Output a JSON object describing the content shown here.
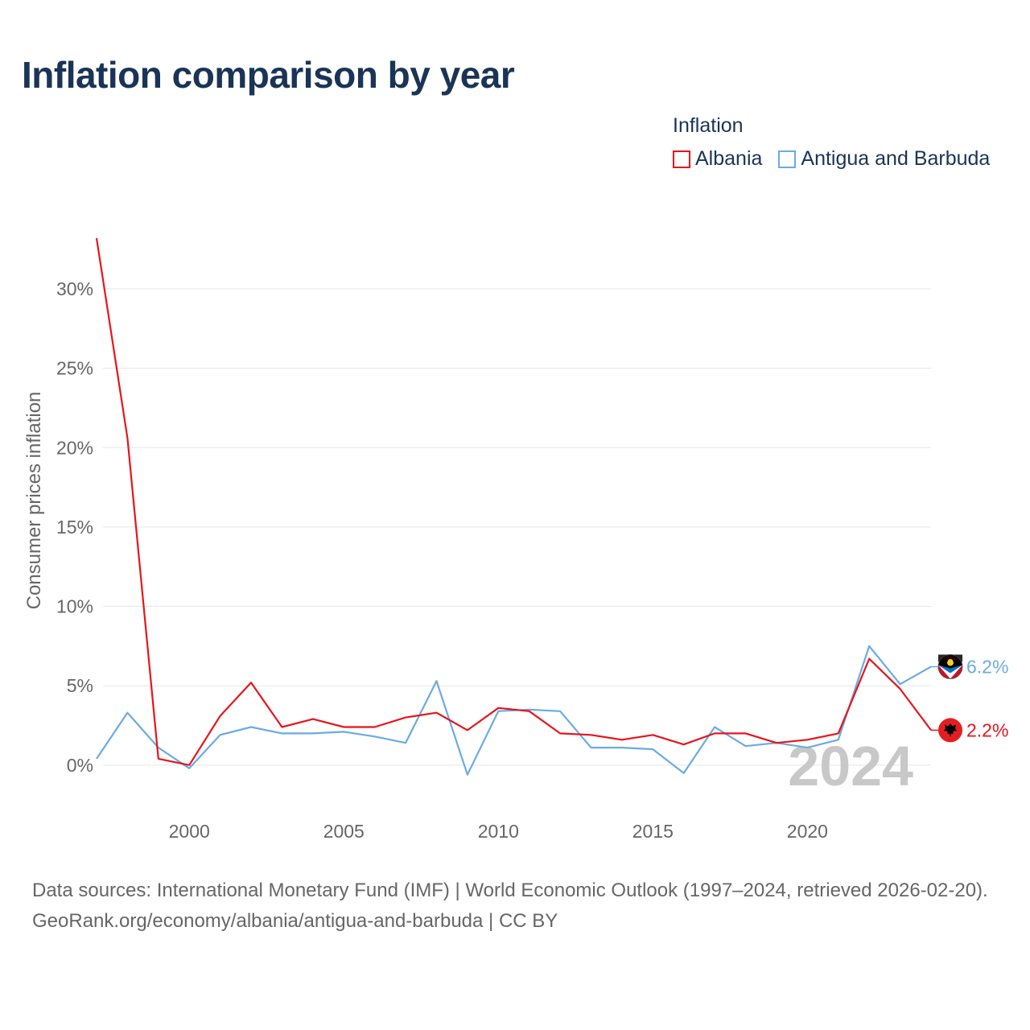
{
  "title": "Inflation comparison by year",
  "legend": {
    "title": "Inflation",
    "items": [
      {
        "label": "Albania",
        "color": "#e8141c"
      },
      {
        "label": "Antigua and Barbuda",
        "color": "#6aabe4"
      }
    ]
  },
  "footer": {
    "sources": "Data sources: International Monetary Fund (IMF) | World Economic Outlook (1997–2024, retrieved 2026-02-20).",
    "credit": "GeoRank.org/economy/albania/antigua-and-barbuda | CC BY"
  },
  "chart_data": {
    "type": "line",
    "title": "Inflation comparison by year",
    "xlabel": "",
    "ylabel": "Consumer prices inflation",
    "x": [
      1997,
      1998,
      1999,
      2000,
      2001,
      2002,
      2003,
      2004,
      2005,
      2006,
      2007,
      2008,
      2009,
      2010,
      2011,
      2012,
      2013,
      2014,
      2015,
      2016,
      2017,
      2018,
      2019,
      2020,
      2021,
      2022,
      2023,
      2024
    ],
    "xlim": [
      1997,
      2024
    ],
    "ylim": [
      -3,
      33.5
    ],
    "x_ticks": [
      2000,
      2005,
      2010,
      2015,
      2020
    ],
    "x_tick_labels": [
      "2000",
      "2005",
      "2010",
      "2015",
      "2020"
    ],
    "y_ticks": [
      0,
      5,
      10,
      15,
      20,
      25,
      30
    ],
    "y_tick_labels": [
      "0%",
      "5%",
      "10%",
      "15%",
      "20%",
      "25%",
      "30%"
    ],
    "grid": true,
    "current_year": "2024",
    "series": [
      {
        "name": "Albania",
        "color": "#e8141c",
        "values": [
          33.2,
          20.6,
          0.4,
          0.0,
          3.1,
          5.2,
          2.4,
          2.9,
          2.4,
          2.4,
          3.0,
          3.3,
          2.2,
          3.6,
          3.4,
          2.0,
          1.9,
          1.6,
          1.9,
          1.3,
          2.0,
          2.0,
          1.4,
          1.6,
          2.0,
          6.7,
          4.8,
          2.2
        ],
        "end_label": "2.2%"
      },
      {
        "name": "Antigua and Barbuda",
        "color": "#6aabe4",
        "values": [
          0.4,
          3.3,
          1.1,
          -0.2,
          1.9,
          2.4,
          2.0,
          2.0,
          2.1,
          1.8,
          1.4,
          5.3,
          -0.6,
          3.4,
          3.5,
          3.4,
          1.1,
          1.1,
          1.0,
          -0.5,
          2.4,
          1.2,
          1.4,
          1.1,
          1.6,
          7.5,
          5.1,
          6.2
        ],
        "end_label": "6.2%"
      }
    ]
  }
}
